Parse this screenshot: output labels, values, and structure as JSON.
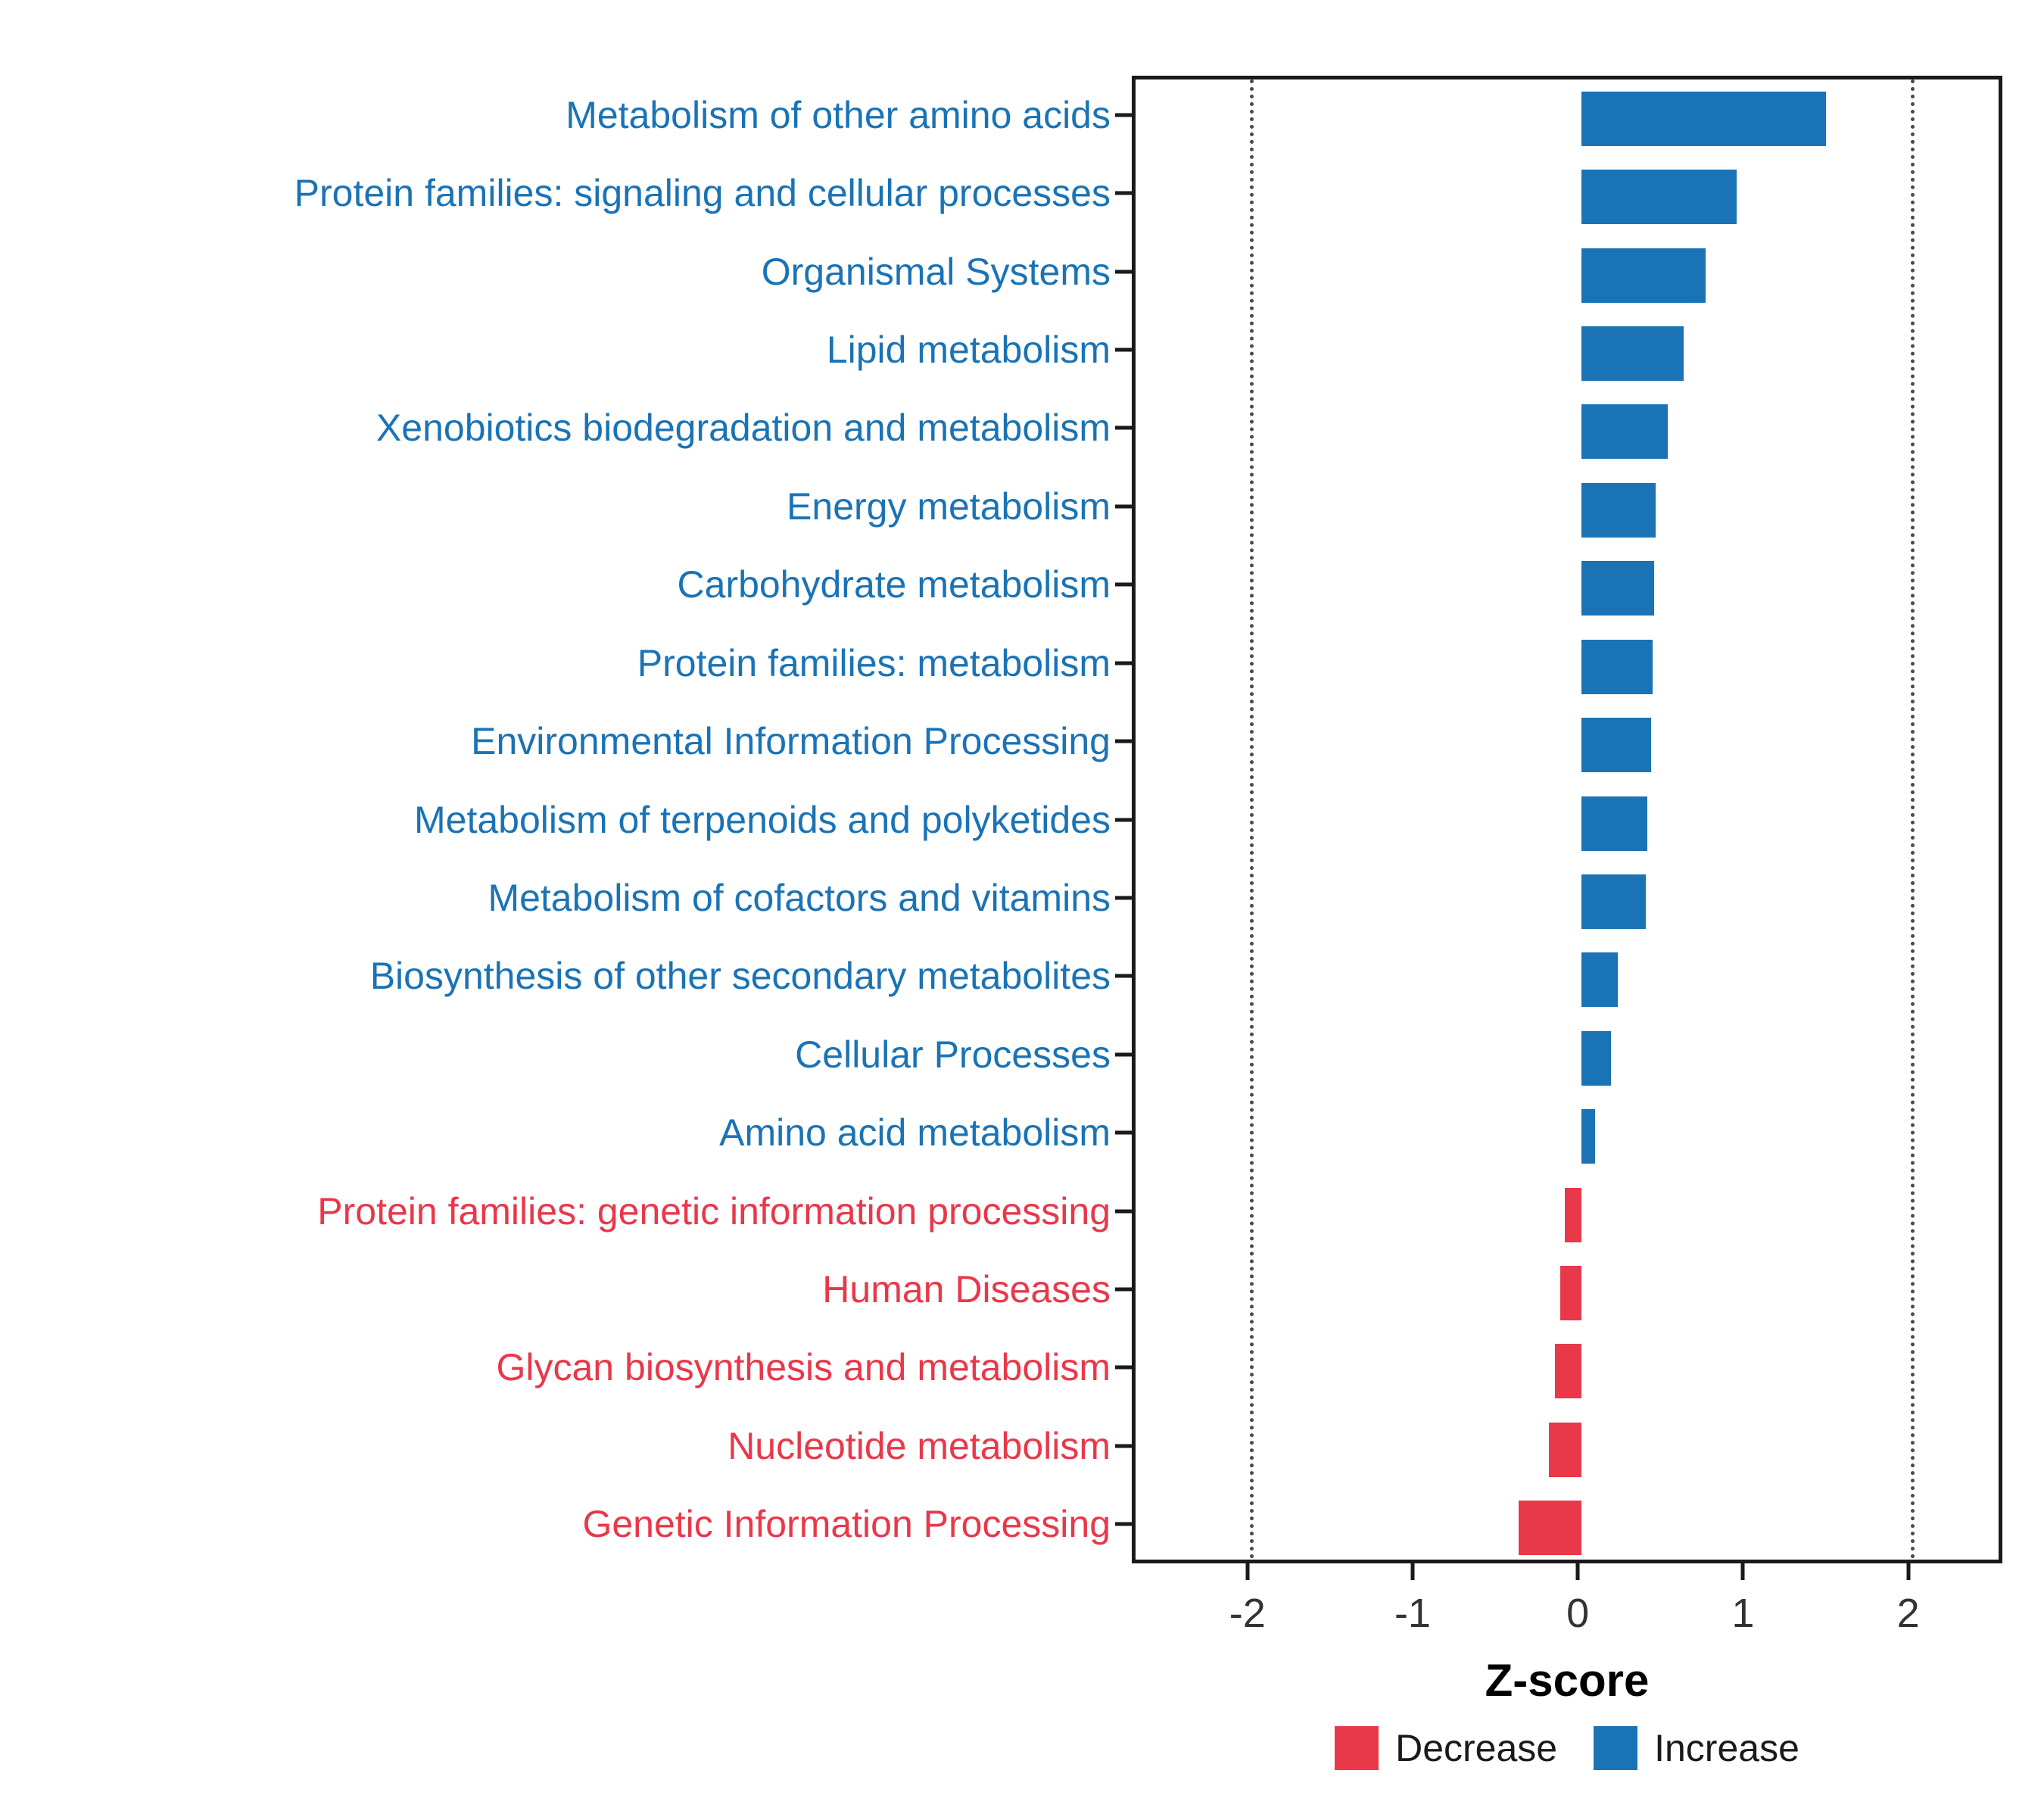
{
  "chart_data": {
    "type": "bar",
    "orientation": "horizontal",
    "title": "",
    "xlabel": "Z-score",
    "ylabel": "",
    "xlim": [
      -2.7,
      2.57
    ],
    "xticks": [
      -2,
      -1,
      0,
      1,
      2
    ],
    "gridlines": [
      -2,
      2
    ],
    "grid_style": "dotted-vertical-at-outer-ticks",
    "legend_position": "bottom",
    "categories": [
      "Metabolism of other amino acids",
      "Protein families: signaling and cellular processes",
      "Organismal Systems",
      "Lipid metabolism",
      "Xenobiotics biodegradation and metabolism",
      "Energy metabolism",
      "Carbohydrate metabolism",
      "Protein families: metabolism",
      "Environmental Information Processing",
      "Metabolism of terpenoids and polyketides",
      "Metabolism of cofactors and vitamins",
      "Biosynthesis of other secondary metabolites",
      "Cellular Processes",
      "Amino acid metabolism",
      "Protein families: genetic information processing",
      "Human Diseases",
      "Glycan biosynthesis and metabolism",
      "Nucleotide metabolism",
      "Genetic Information Processing"
    ],
    "values": [
      1.48,
      0.94,
      0.75,
      0.62,
      0.52,
      0.45,
      0.44,
      0.43,
      0.42,
      0.4,
      0.39,
      0.22,
      0.18,
      0.08,
      -0.1,
      -0.13,
      -0.16,
      -0.2,
      -0.38
    ],
    "colors": {
      "increase": "#1A73B5",
      "decrease": "#E8384A"
    },
    "legend": [
      {
        "label": "Decrease",
        "color": "#E8384A"
      },
      {
        "label": "Increase",
        "color": "#1A73B5"
      }
    ]
  }
}
